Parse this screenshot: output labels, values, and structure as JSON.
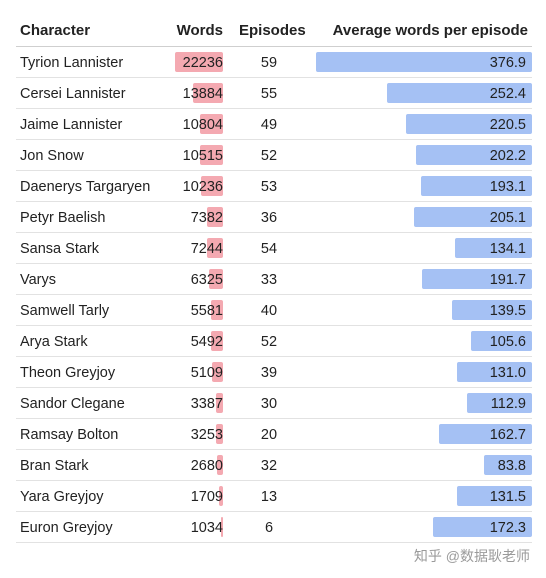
{
  "chart_data": {
    "type": "table",
    "columns": [
      "Character",
      "Words",
      "Episodes",
      "Average words per episode"
    ],
    "rows": [
      {
        "character": "Tyrion Lannister",
        "words": 22236,
        "episodes": 59,
        "avg": "376.9"
      },
      {
        "character": "Cersei Lannister",
        "words": 13884,
        "episodes": 55,
        "avg": "252.4"
      },
      {
        "character": "Jaime Lannister",
        "words": 10804,
        "episodes": 49,
        "avg": "220.5"
      },
      {
        "character": "Jon Snow",
        "words": 10515,
        "episodes": 52,
        "avg": "202.2"
      },
      {
        "character": "Daenerys Targaryen",
        "words": 10236,
        "episodes": 53,
        "avg": "193.1"
      },
      {
        "character": "Petyr Baelish",
        "words": 7382,
        "episodes": 36,
        "avg": "205.1"
      },
      {
        "character": "Sansa Stark",
        "words": 7244,
        "episodes": 54,
        "avg": "134.1"
      },
      {
        "character": "Varys",
        "words": 6325,
        "episodes": 33,
        "avg": "191.7"
      },
      {
        "character": "Samwell Tarly",
        "words": 5581,
        "episodes": 40,
        "avg": "139.5"
      },
      {
        "character": "Arya Stark",
        "words": 5492,
        "episodes": 52,
        "avg": "105.6"
      },
      {
        "character": "Theon Greyjoy",
        "words": 5109,
        "episodes": 39,
        "avg": "131.0"
      },
      {
        "character": "Sandor Clegane",
        "words": 3387,
        "episodes": 30,
        "avg": "112.9"
      },
      {
        "character": "Ramsay Bolton",
        "words": 3253,
        "episodes": 20,
        "avg": "162.7"
      },
      {
        "character": "Bran Stark",
        "words": 2680,
        "episodes": 32,
        "avg": "83.8"
      },
      {
        "character": "Yara Greyjoy",
        "words": 1709,
        "episodes": 13,
        "avg": "131.5"
      },
      {
        "character": "Euron Greyjoy",
        "words": 1034,
        "episodes": 6,
        "avg": "172.3"
      }
    ],
    "colors": {
      "words_bar": "#f4a9b1",
      "avg_bar": "#a5c1f4"
    }
  },
  "watermark": "知乎 @数据耿老师"
}
